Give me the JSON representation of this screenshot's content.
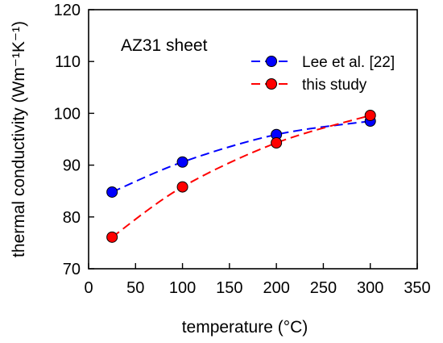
{
  "chart_data": {
    "type": "line",
    "annotation": "AZ31 sheet",
    "xlabel": "temperature (°C)",
    "ylabel": "thermal conductivity (Wm⁻¹K⁻¹)",
    "xlim": [
      0,
      350
    ],
    "ylim": [
      70,
      120
    ],
    "xticks": [
      0,
      50,
      100,
      150,
      200,
      250,
      300,
      350
    ],
    "yticks": [
      70,
      80,
      90,
      100,
      110,
      120
    ],
    "grid": false,
    "legend_position": "top-right",
    "series": [
      {
        "name": "Lee et al. [22]",
        "color": "#0000ff",
        "line_style": "dashed",
        "marker": "circle",
        "x": [
          25,
          100,
          200,
          300
        ],
        "y": [
          84.8,
          90.6,
          95.9,
          98.5
        ]
      },
      {
        "name": "this study",
        "color": "#ff0000",
        "line_style": "dashed",
        "marker": "circle",
        "x": [
          25,
          100,
          200,
          300
        ],
        "y": [
          76.1,
          85.8,
          94.3,
          99.6
        ]
      }
    ]
  }
}
